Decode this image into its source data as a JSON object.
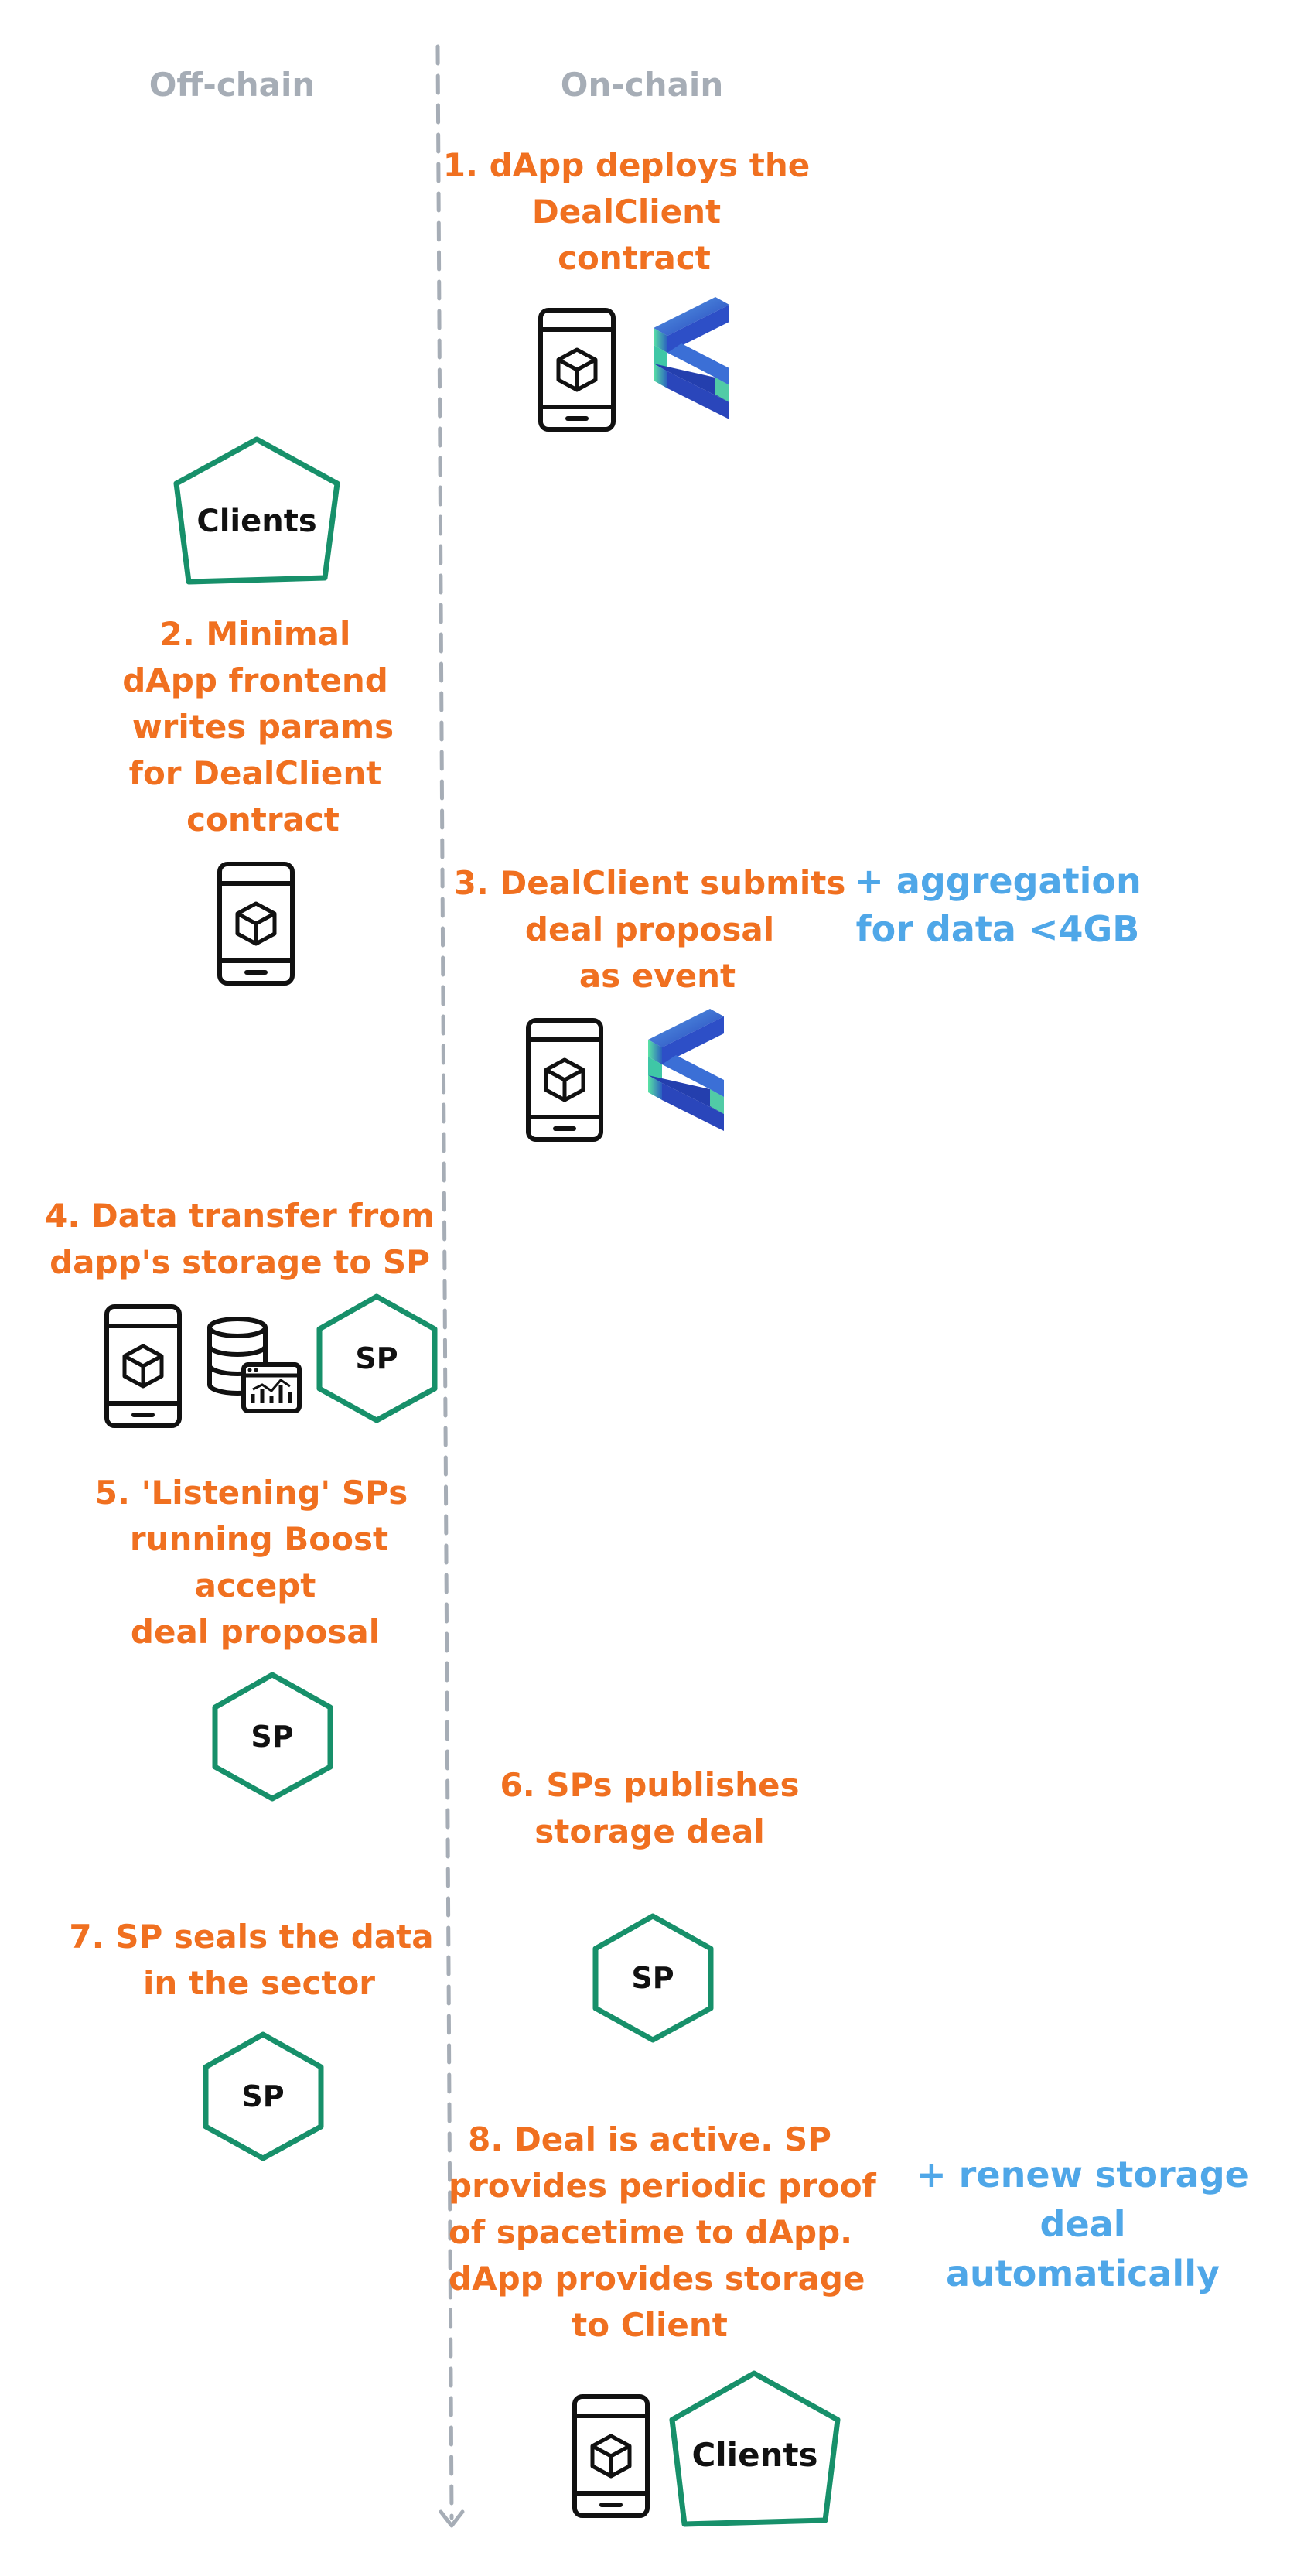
{
  "columns": {
    "off_chain": "Off-chain",
    "on_chain": "On-chain"
  },
  "steps": {
    "s1": [
      "1. dApp deploys the",
      "DealClient",
      "contract"
    ],
    "s2": [
      "2. Minimal",
      "dApp frontend",
      "writes params",
      "for DealClient",
      "contract"
    ],
    "s3": [
      "3. DealClient submits",
      "deal proposal",
      "as event"
    ],
    "s4": [
      "4. Data transfer from",
      "dapp's storage to SP"
    ],
    "s5": [
      "5. 'Listening' SPs",
      "running Boost",
      "accept",
      "deal proposal"
    ],
    "s6": [
      "6. SPs publishes",
      "storage deal"
    ],
    "s7": [
      "7. SP seals the data",
      "in the sector"
    ],
    "s8": [
      "8. Deal is active. SP",
      "provides periodic proof",
      "of spacetime to dApp.",
      "dApp provides storage",
      "to Client"
    ]
  },
  "notes": {
    "aggregation": [
      "+ aggregation",
      "for data <4GB"
    ],
    "renew": [
      "+ renew storage",
      "deal",
      "automatically"
    ]
  },
  "shapes": {
    "clients": "Clients",
    "sp": "SP"
  },
  "icons": [
    "phone-cube-icon",
    "filecoin-evm-logo-icon",
    "database-chart-icon"
  ],
  "colors": {
    "step_text": "#f07020",
    "note_text": "#4fa7e8",
    "header_text": "#a6adb6",
    "shape_stroke": "#17906a",
    "divider": "#a6adb6"
  }
}
